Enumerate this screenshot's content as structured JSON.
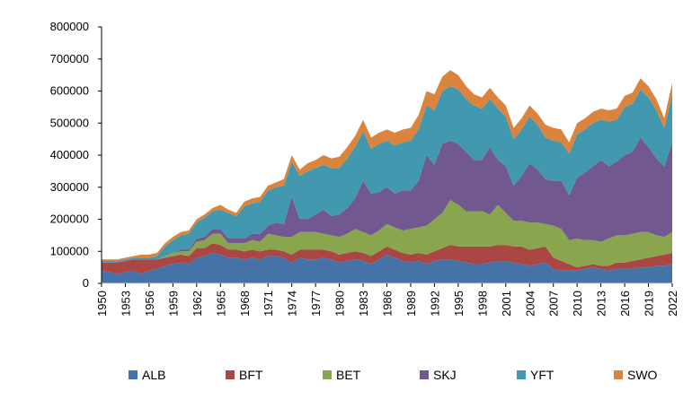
{
  "chart_data": {
    "type": "area",
    "stacked": true,
    "title": "",
    "xlabel": "",
    "ylabel": "",
    "ylim": [
      0,
      800000
    ],
    "yticks": [
      0,
      100000,
      200000,
      300000,
      400000,
      500000,
      600000,
      700000,
      800000
    ],
    "xtick_labels": [
      "1950",
      "1953",
      "1956",
      "1959",
      "1962",
      "1965",
      "1968",
      "1971",
      "1974",
      "1977",
      "1980",
      "1983",
      "1986",
      "1989",
      "1992",
      "1995",
      "1998",
      "2001",
      "2004",
      "2007",
      "2010",
      "2013",
      "2016",
      "2019",
      "2022"
    ],
    "grid": false,
    "legend_position": "bottom",
    "x": [
      1950,
      1951,
      1952,
      1953,
      1954,
      1955,
      1956,
      1957,
      1958,
      1959,
      1960,
      1961,
      1962,
      1963,
      1964,
      1965,
      1966,
      1967,
      1968,
      1969,
      1970,
      1971,
      1972,
      1973,
      1974,
      1975,
      1976,
      1977,
      1978,
      1979,
      1980,
      1981,
      1982,
      1983,
      1984,
      1985,
      1986,
      1987,
      1988,
      1989,
      1990,
      1991,
      1992,
      1993,
      1994,
      1995,
      1996,
      1997,
      1998,
      1999,
      2000,
      2001,
      2002,
      2003,
      2004,
      2005,
      2006,
      2007,
      2008,
      2009,
      2010,
      2011,
      2012,
      2013,
      2014,
      2015,
      2016,
      2017,
      2018,
      2019,
      2020,
      2021,
      2022
    ],
    "series": [
      {
        "name": "ALB",
        "color": "#4573a7",
        "values": [
          40000,
          35000,
          30000,
          35000,
          40000,
          30000,
          40000,
          45000,
          55000,
          60000,
          65000,
          60000,
          80000,
          85000,
          95000,
          90000,
          80000,
          80000,
          75000,
          80000,
          75000,
          85000,
          85000,
          80000,
          65000,
          80000,
          75000,
          75000,
          80000,
          75000,
          65000,
          70000,
          75000,
          70000,
          60000,
          75000,
          90000,
          80000,
          70000,
          65000,
          70000,
          60000,
          70000,
          75000,
          75000,
          70000,
          65000,
          60000,
          60000,
          65000,
          70000,
          70000,
          65000,
          60000,
          55000,
          60000,
          65000,
          45000,
          40000,
          40000,
          40000,
          45000,
          50000,
          45000,
          40000,
          45000,
          45000,
          45000,
          50000,
          50000,
          55000,
          55000,
          60000
        ]
      },
      {
        "name": "BFT",
        "color": "#aa4643",
        "values": [
          25000,
          30000,
          35000,
          35000,
          35000,
          45000,
          35000,
          30000,
          25000,
          25000,
          25000,
          25000,
          30000,
          25000,
          30000,
          30000,
          25000,
          25000,
          25000,
          25000,
          25000,
          20000,
          20000,
          20000,
          25000,
          25000,
          30000,
          30000,
          25000,
          25000,
          25000,
          25000,
          25000,
          25000,
          25000,
          25000,
          25000,
          25000,
          25000,
          25000,
          25000,
          30000,
          30000,
          35000,
          45000,
          45000,
          50000,
          55000,
          55000,
          50000,
          50000,
          50000,
          50000,
          55000,
          50000,
          50000,
          50000,
          35000,
          30000,
          20000,
          10000,
          10000,
          10000,
          10000,
          15000,
          20000,
          20000,
          25000,
          25000,
          30000,
          30000,
          35000,
          35000
        ]
      },
      {
        "name": "BET",
        "color": "#89a54e",
        "values": [
          0,
          0,
          0,
          0,
          0,
          0,
          0,
          0,
          5000,
          10000,
          10000,
          15000,
          20000,
          25000,
          30000,
          35000,
          20000,
          20000,
          25000,
          30000,
          30000,
          50000,
          45000,
          45000,
          55000,
          55000,
          55000,
          55000,
          50000,
          50000,
          55000,
          60000,
          70000,
          65000,
          65000,
          65000,
          70000,
          70000,
          70000,
          80000,
          80000,
          90000,
          100000,
          110000,
          140000,
          130000,
          110000,
          110000,
          110000,
          100000,
          125000,
          100000,
          80000,
          80000,
          85000,
          80000,
          70000,
          100000,
          100000,
          75000,
          90000,
          80000,
          75000,
          75000,
          85000,
          85000,
          85000,
          85000,
          85000,
          80000,
          65000,
          55000,
          65000
        ]
      },
      {
        "name": "SKJ",
        "color": "#71588f",
        "values": [
          0,
          0,
          0,
          0,
          0,
          0,
          0,
          0,
          0,
          0,
          5000,
          5000,
          10000,
          10000,
          15000,
          15000,
          15000,
          15000,
          15000,
          20000,
          25000,
          25000,
          40000,
          40000,
          125000,
          40000,
          40000,
          55000,
          75000,
          60000,
          70000,
          80000,
          95000,
          160000,
          130000,
          120000,
          115000,
          105000,
          125000,
          120000,
          145000,
          220000,
          170000,
          215000,
          185000,
          190000,
          185000,
          160000,
          160000,
          210000,
          140000,
          145000,
          110000,
          140000,
          185000,
          165000,
          140000,
          140000,
          150000,
          140000,
          190000,
          210000,
          230000,
          255000,
          225000,
          230000,
          250000,
          255000,
          295000,
          265000,
          240000,
          220000,
          280000
        ]
      },
      {
        "name": "YFT",
        "color": "#4198af",
        "values": [
          5000,
          5000,
          5000,
          5000,
          5000,
          5000,
          5000,
          10000,
          30000,
          40000,
          45000,
          50000,
          50000,
          60000,
          55000,
          60000,
          80000,
          70000,
          100000,
          95000,
          100000,
          110000,
          110000,
          120000,
          110000,
          135000,
          150000,
          145000,
          140000,
          150000,
          145000,
          155000,
          160000,
          155000,
          140000,
          150000,
          145000,
          150000,
          150000,
          155000,
          160000,
          155000,
          170000,
          165000,
          170000,
          170000,
          165000,
          170000,
          160000,
          150000,
          160000,
          155000,
          145000,
          145000,
          145000,
          140000,
          130000,
          125000,
          120000,
          130000,
          135000,
          135000,
          135000,
          125000,
          140000,
          130000,
          150000,
          150000,
          150000,
          155000,
          150000,
          120000,
          150000
        ]
      },
      {
        "name": "SWO",
        "color": "#db843d",
        "values": [
          5000,
          5000,
          5000,
          5000,
          5000,
          10000,
          10000,
          10000,
          10000,
          10000,
          10000,
          10000,
          10000,
          10000,
          10000,
          15000,
          10000,
          10000,
          15000,
          15000,
          15000,
          15000,
          15000,
          20000,
          20000,
          20000,
          25000,
          25000,
          30000,
          30000,
          35000,
          35000,
          35000,
          35000,
          35000,
          35000,
          35000,
          40000,
          40000,
          40000,
          45000,
          45000,
          50000,
          45000,
          50000,
          45000,
          40000,
          35000,
          35000,
          35000,
          35000,
          35000,
          35000,
          35000,
          35000,
          35000,
          40000,
          40000,
          40000,
          35000,
          35000,
          35000,
          35000,
          35000,
          35000,
          35000,
          35000,
          35000,
          35000,
          35000,
          35000,
          30000,
          35000
        ]
      }
    ]
  }
}
